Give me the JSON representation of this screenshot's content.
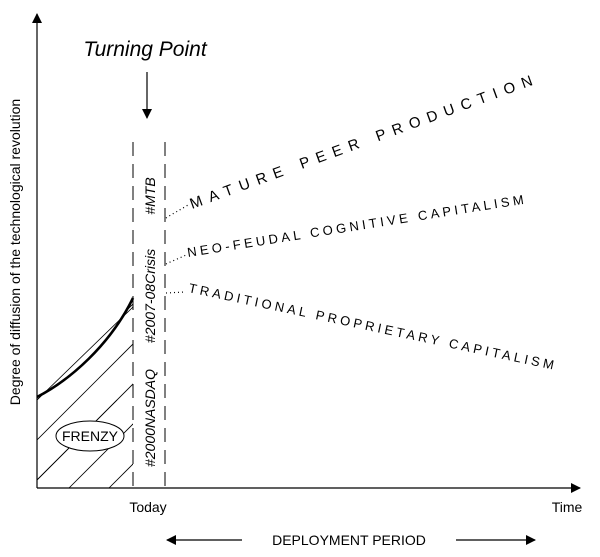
{
  "title": "Turning Point",
  "axes": {
    "y_label": "Degree of diffusion of the technological revolution",
    "x_end_label": "Time",
    "today_label": "Today"
  },
  "frenzy_label": "FRENZY",
  "band_labels": {
    "mtb": "#MTB",
    "crisis": "#2007-08Crisis",
    "nasdaq": "#2000NASDAQ"
  },
  "scenarios": {
    "mature": "MATURE PEER PRODUCTION",
    "neofeudal": "NEO-FEUDAL COGNITIVE CAPITALISM",
    "traditional": "TRADITIONAL PROPRIETARY CAPITALISM"
  },
  "deployment_label": "DEPLOYMENT PERIOD",
  "colors": {
    "ink": "#000000",
    "background": "#ffffff"
  }
}
